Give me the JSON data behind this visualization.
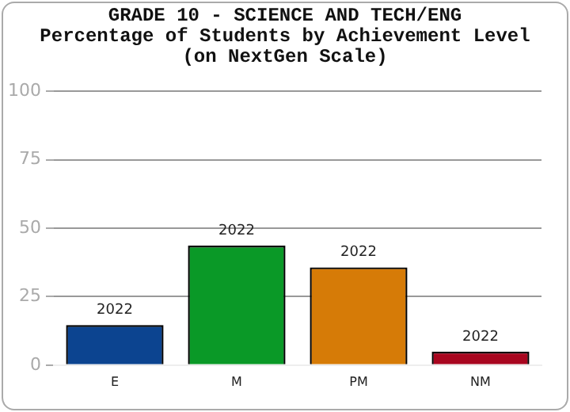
{
  "chart_data": {
    "type": "bar",
    "title": "GRADE 10 - SCIENCE AND TECH/ENG\nPercentage of Students by Achievement Level\n(on NextGen Scale)",
    "categories": [
      "E",
      "M",
      "PM",
      "NM"
    ],
    "series": [
      {
        "name": "2022",
        "colors": [
          "#0c4490",
          "#0a9927",
          "#d67b07",
          "#a8061f"
        ],
        "values": [
          14.6,
          43.6,
          35.7,
          4.9
        ]
      }
    ],
    "ylim": [
      0,
      100
    ],
    "yticks": [
      0,
      25,
      50,
      75,
      100
    ],
    "grid": "y",
    "legend": false
  }
}
